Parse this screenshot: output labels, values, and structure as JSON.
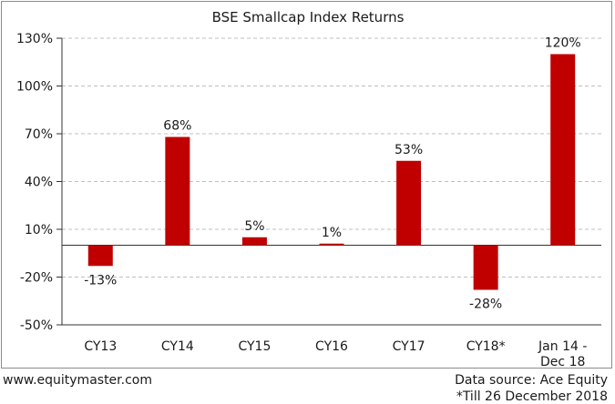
{
  "footer": {
    "site": "www.equitymaster.com",
    "source": "Data source: Ace Equity",
    "note": "*Till 26 December 2018"
  },
  "colors": {
    "bar": "#c00000",
    "grid": "#bfbfbf",
    "axis": "#333333"
  },
  "chart_data": {
    "type": "bar",
    "title": "BSE Smallcap Index Returns",
    "xlabel": "",
    "ylabel": "",
    "categories": [
      "CY13",
      "CY14",
      "CY15",
      "CY16",
      "CY17",
      "CY18*",
      "Jan 14 - Dec 18"
    ],
    "category_lines": [
      [
        "CY13"
      ],
      [
        "CY14"
      ],
      [
        "CY15"
      ],
      [
        "CY16"
      ],
      [
        "CY17"
      ],
      [
        "CY18*"
      ],
      [
        "Jan 14 -",
        "Dec 18"
      ]
    ],
    "values": [
      -13,
      68,
      5,
      1,
      53,
      -28,
      120
    ],
    "data_labels": [
      "-13%",
      "68%",
      "5%",
      "1%",
      "53%",
      "-28%",
      "120%"
    ],
    "ylim": [
      -50,
      130
    ],
    "yticks": [
      -50,
      -20,
      10,
      40,
      70,
      100,
      130
    ],
    "ytick_labels": [
      "-50%",
      "-20%",
      "10%",
      "40%",
      "70%",
      "100%",
      "130%"
    ],
    "grid": true,
    "legend": "none"
  }
}
